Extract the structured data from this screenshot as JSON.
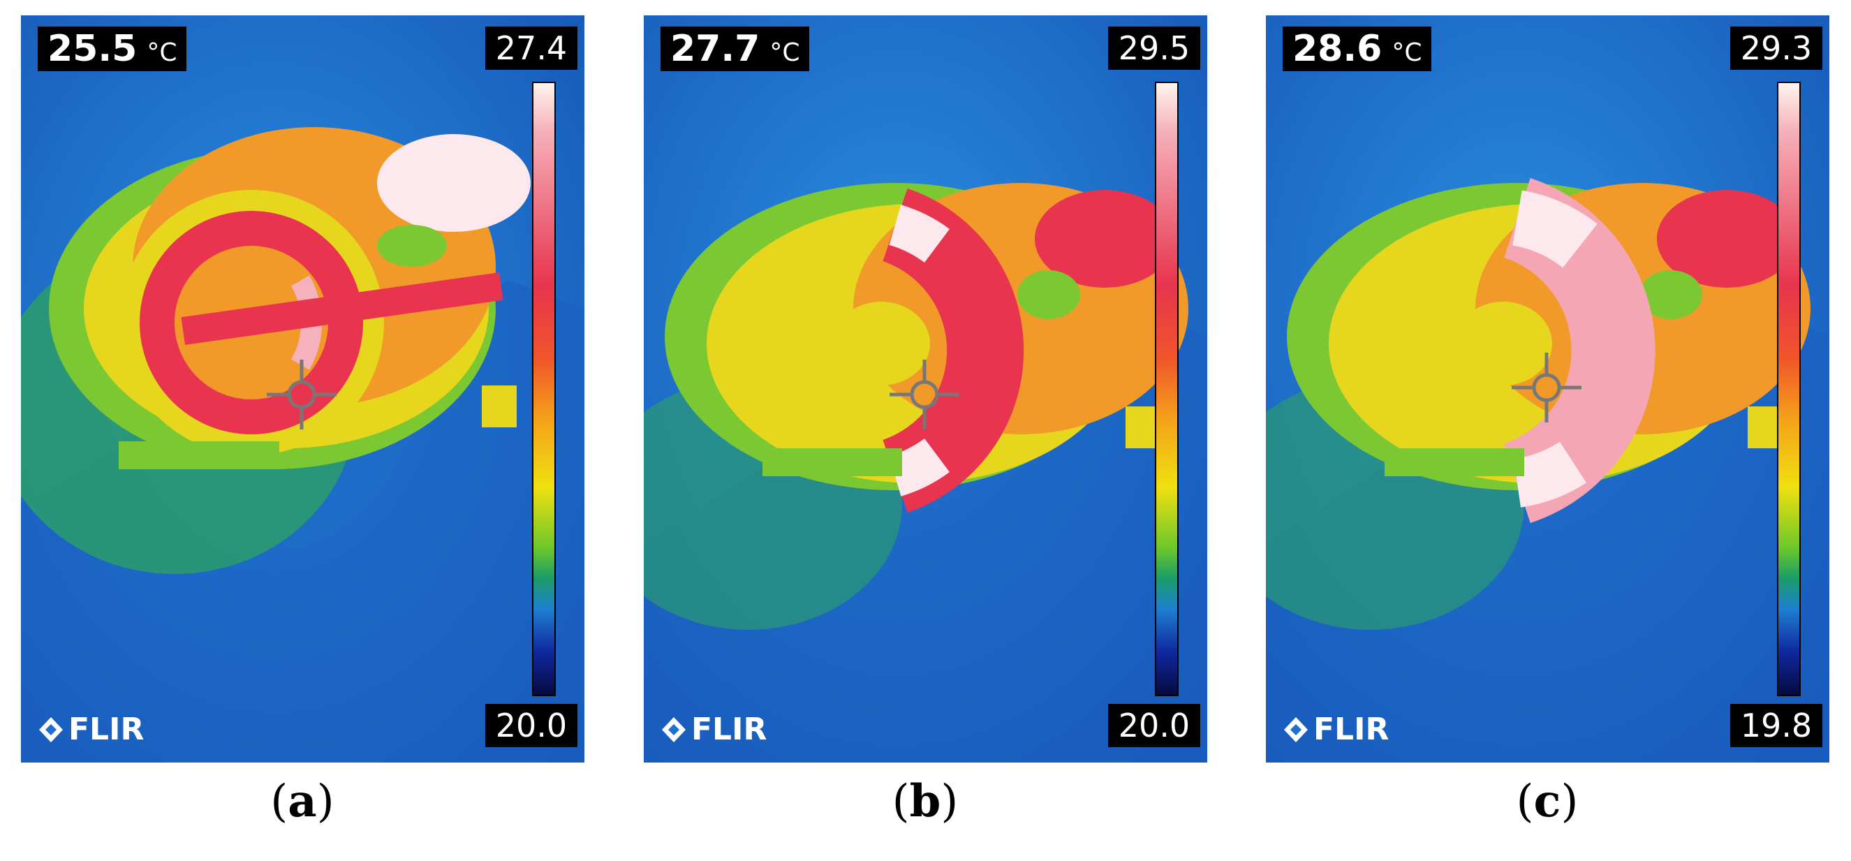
{
  "panels": [
    {
      "spot_temp": "25.5",
      "unit": "°C",
      "max": "27.4",
      "min": "20.0",
      "brand": "FLIR",
      "caption_letter": "a"
    },
    {
      "spot_temp": "27.7",
      "unit": "°C",
      "max": "29.5",
      "min": "20.0",
      "brand": "FLIR",
      "caption_letter": "b"
    },
    {
      "spot_temp": "28.6",
      "unit": "°C",
      "max": "29.3",
      "min": "19.8",
      "brand": "FLIR",
      "caption_letter": "c"
    }
  ],
  "palette": {
    "background": "#1f6fd0",
    "cool": "#2a9a70",
    "mid": "#e8d820",
    "warm": "#f08a2a",
    "hot": "#e8344e",
    "hottest": "#ffe8ee"
  },
  "icons": {
    "crosshair": "crosshair-icon",
    "logo": "flir-logo-icon"
  }
}
